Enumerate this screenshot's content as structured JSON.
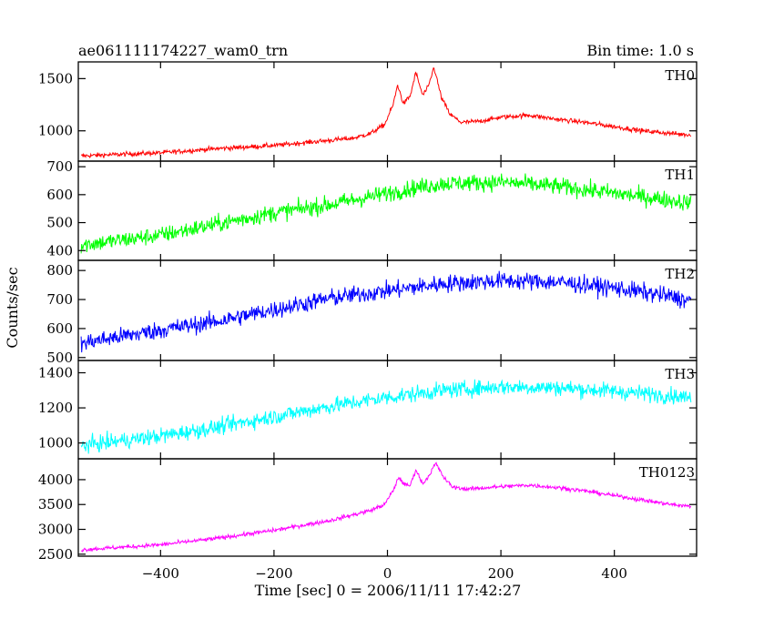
{
  "header": {
    "title": "ae061111174227_wam0_trn",
    "bin_time": "Bin time: 1.0 s"
  },
  "chart_data": {
    "type": "line",
    "xlabel": "Time [sec] 0 = 2006/11/11 17:42:27",
    "ylabel": "Counts/sec",
    "xlim": [
      -545,
      545
    ],
    "x_ticks": [
      -400,
      -200,
      0,
      200,
      400
    ],
    "x_tick_labels": [
      "−400",
      "−200",
      "0",
      "200",
      "400"
    ],
    "panels": [
      {
        "name": "TH0",
        "color": "#ff0000",
        "ylim": [
          710,
          1660
        ],
        "y_ticks": [
          1000,
          1500
        ],
        "noise": 22,
        "points": [
          [
            -540,
            760
          ],
          [
            -400,
            790
          ],
          [
            -300,
            830
          ],
          [
            -200,
            860
          ],
          [
            -120,
            900
          ],
          [
            -60,
            930
          ],
          [
            -30,
            975
          ],
          [
            -5,
            1060
          ],
          [
            10,
            1250
          ],
          [
            18,
            1440
          ],
          [
            28,
            1260
          ],
          [
            40,
            1330
          ],
          [
            50,
            1560
          ],
          [
            62,
            1340
          ],
          [
            72,
            1420
          ],
          [
            82,
            1610
          ],
          [
            95,
            1320
          ],
          [
            110,
            1160
          ],
          [
            130,
            1080
          ],
          [
            160,
            1090
          ],
          [
            200,
            1130
          ],
          [
            250,
            1150
          ],
          [
            300,
            1110
          ],
          [
            350,
            1080
          ],
          [
            400,
            1040
          ],
          [
            450,
            1000
          ],
          [
            500,
            975
          ],
          [
            535,
            960
          ]
        ]
      },
      {
        "name": "TH1",
        "color": "#00ff00",
        "ylim": [
          365,
          720
        ],
        "y_ticks": [
          400,
          500,
          600,
          700
        ],
        "noise": 30,
        "points": [
          [
            -540,
            420
          ],
          [
            -400,
            455
          ],
          [
            -300,
            495
          ],
          [
            -200,
            535
          ],
          [
            -100,
            565
          ],
          [
            0,
            605
          ],
          [
            50,
            625
          ],
          [
            100,
            640
          ],
          [
            200,
            645
          ],
          [
            300,
            630
          ],
          [
            400,
            605
          ],
          [
            500,
            580
          ],
          [
            535,
            570
          ]
        ]
      },
      {
        "name": "TH2",
        "color": "#0000ff",
        "ylim": [
          490,
          835
        ],
        "y_ticks": [
          500,
          600,
          700,
          800
        ],
        "noise": 30,
        "points": [
          [
            -540,
            550
          ],
          [
            -400,
            595
          ],
          [
            -300,
            625
          ],
          [
            -200,
            665
          ],
          [
            -100,
            705
          ],
          [
            0,
            730
          ],
          [
            100,
            755
          ],
          [
            200,
            765
          ],
          [
            300,
            760
          ],
          [
            400,
            740
          ],
          [
            500,
            710
          ],
          [
            535,
            695
          ]
        ]
      },
      {
        "name": "TH3",
        "color": "#00ffff",
        "ylim": [
          910,
          1470
        ],
        "y_ticks": [
          1000,
          1200,
          1400
        ],
        "noise": 45,
        "points": [
          [
            -540,
            985
          ],
          [
            -400,
            1040
          ],
          [
            -300,
            1090
          ],
          [
            -200,
            1150
          ],
          [
            -100,
            1210
          ],
          [
            0,
            1260
          ],
          [
            100,
            1300
          ],
          [
            200,
            1320
          ],
          [
            300,
            1315
          ],
          [
            400,
            1295
          ],
          [
            500,
            1270
          ],
          [
            535,
            1255
          ]
        ]
      },
      {
        "name": "TH0123",
        "color": "#ff00ff",
        "ylim": [
          2460,
          4420
        ],
        "y_ticks": [
          2500,
          3000,
          3500,
          4000
        ],
        "noise": 40,
        "points": [
          [
            -540,
            2590
          ],
          [
            -400,
            2690
          ],
          [
            -300,
            2820
          ],
          [
            -200,
            2980
          ],
          [
            -100,
            3180
          ],
          [
            -30,
            3380
          ],
          [
            -5,
            3500
          ],
          [
            10,
            3780
          ],
          [
            20,
            4050
          ],
          [
            30,
            3900
          ],
          [
            40,
            3880
          ],
          [
            50,
            4200
          ],
          [
            62,
            3920
          ],
          [
            72,
            4060
          ],
          [
            85,
            4330
          ],
          [
            100,
            4030
          ],
          [
            115,
            3850
          ],
          [
            140,
            3810
          ],
          [
            200,
            3860
          ],
          [
            250,
            3890
          ],
          [
            300,
            3840
          ],
          [
            350,
            3770
          ],
          [
            400,
            3680
          ],
          [
            450,
            3590
          ],
          [
            500,
            3500
          ],
          [
            535,
            3460
          ]
        ]
      }
    ]
  }
}
